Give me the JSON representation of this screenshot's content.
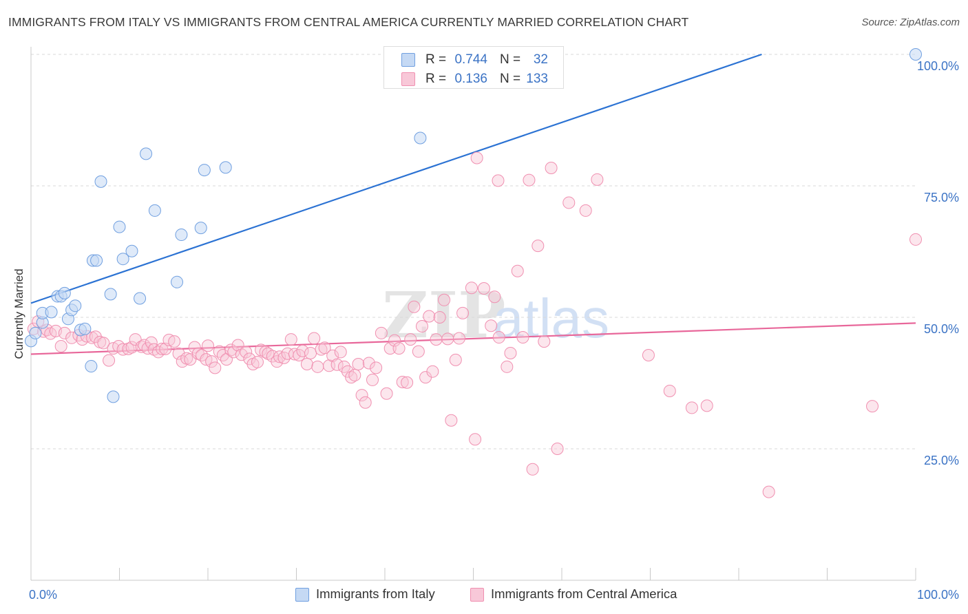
{
  "title": "IMMIGRANTS FROM ITALY VS IMMIGRANTS FROM CENTRAL AMERICA CURRENTLY MARRIED CORRELATION CHART",
  "source": "Source: ZipAtlas.com",
  "watermark": "ZIPatlas",
  "colors": {
    "blue": "#6f9fe0",
    "blue_fill": "#c5d9f4",
    "blue_line": "#2b72d3",
    "pink": "#f08fb0",
    "pink_fill": "#f8c8d8",
    "pink_line": "#e8679a",
    "value_blue": "#3b73c5",
    "grid": "#d9d9d9"
  },
  "legend_stats": [
    {
      "series": "Immigrants from Italy",
      "r_label": "R =",
      "r_value": "0.744",
      "n_label": "N =",
      "n_value": "32"
    },
    {
      "series": "Immigrants from Central America",
      "r_label": "R =",
      "r_value": "0.136",
      "n_label": "N =",
      "n_value": "133"
    }
  ],
  "chart_data": {
    "type": "scatter",
    "title": "IMMIGRANTS FROM ITALY VS IMMIGRANTS FROM CENTRAL AMERICA CURRENTLY MARRIED CORRELATION CHART",
    "xlabel": "",
    "ylabel": "Currently Married",
    "xlim": [
      0,
      100
    ],
    "ylim": [
      0,
      100
    ],
    "x_tick_labels": [
      "0.0%",
      "100.0%"
    ],
    "y_tick_labels": [
      "25.0%",
      "50.0%",
      "75.0%",
      "100.0%"
    ],
    "y_ticks": [
      25,
      50,
      75,
      100
    ],
    "grid": true,
    "legend_position": "bottom",
    "series": [
      {
        "name": "Immigrants from Italy",
        "color": "#6f9fe0",
        "trend": {
          "x": [
            0,
            82.6
          ],
          "y": [
            52.7,
            100
          ]
        },
        "points": [
          [
            0.0,
            45.5
          ],
          [
            1.3,
            49.0
          ],
          [
            1.3,
            50.8
          ],
          [
            2.3,
            51.0
          ],
          [
            3.0,
            54.0
          ],
          [
            3.4,
            54.0
          ],
          [
            3.8,
            54.6
          ],
          [
            4.2,
            49.7
          ],
          [
            4.6,
            51.4
          ],
          [
            5.0,
            52.2
          ],
          [
            5.6,
            47.6
          ],
          [
            6.1,
            47.8
          ],
          [
            6.8,
            40.7
          ],
          [
            7.0,
            60.8
          ],
          [
            7.4,
            60.8
          ],
          [
            7.9,
            75.8
          ],
          [
            9.0,
            54.4
          ],
          [
            9.3,
            34.9
          ],
          [
            10.0,
            67.2
          ],
          [
            10.4,
            61.1
          ],
          [
            11.4,
            62.6
          ],
          [
            12.3,
            53.6
          ],
          [
            13.0,
            81.1
          ],
          [
            14.0,
            70.3
          ],
          [
            16.5,
            56.7
          ],
          [
            17.0,
            65.7
          ],
          [
            19.2,
            67.0
          ],
          [
            19.6,
            78.0
          ],
          [
            22.0,
            78.5
          ],
          [
            44.0,
            84.1
          ],
          [
            100.0,
            100.0
          ],
          [
            0.5,
            47.0
          ]
        ]
      },
      {
        "name": "Immigrants from Central America",
        "color": "#f08fb0",
        "trend": {
          "x": [
            0,
            100
          ],
          "y": [
            43.0,
            48.9
          ]
        },
        "points": [
          [
            0.3,
            47.8
          ],
          [
            0.8,
            49.2
          ],
          [
            1.4,
            47.3
          ],
          [
            1.8,
            47.6
          ],
          [
            2.2,
            46.9
          ],
          [
            2.8,
            47.4
          ],
          [
            3.4,
            44.5
          ],
          [
            3.8,
            47.0
          ],
          [
            4.6,
            46.1
          ],
          [
            5.4,
            46.6
          ],
          [
            5.8,
            45.8
          ],
          [
            6.3,
            46.4
          ],
          [
            6.9,
            46.1
          ],
          [
            7.3,
            46.3
          ],
          [
            7.8,
            45.3
          ],
          [
            8.2,
            45.1
          ],
          [
            8.8,
            41.8
          ],
          [
            9.3,
            44.1
          ],
          [
            9.9,
            44.5
          ],
          [
            10.4,
            43.9
          ],
          [
            11.0,
            44.0
          ],
          [
            11.4,
            44.3
          ],
          [
            11.8,
            45.8
          ],
          [
            12.5,
            44.4
          ],
          [
            12.8,
            44.7
          ],
          [
            13.2,
            44.1
          ],
          [
            13.6,
            45.2
          ],
          [
            13.9,
            43.9
          ],
          [
            14.4,
            43.4
          ],
          [
            14.8,
            44.0
          ],
          [
            15.2,
            44.0
          ],
          [
            15.6,
            45.7
          ],
          [
            16.2,
            45.4
          ],
          [
            16.7,
            43.1
          ],
          [
            17.1,
            41.6
          ],
          [
            17.6,
            42.2
          ],
          [
            18.0,
            42.0
          ],
          [
            18.5,
            44.3
          ],
          [
            18.9,
            43.1
          ],
          [
            19.3,
            42.8
          ],
          [
            19.8,
            42.0
          ],
          [
            20.0,
            44.6
          ],
          [
            20.4,
            41.6
          ],
          [
            20.8,
            40.4
          ],
          [
            21.3,
            43.5
          ],
          [
            21.7,
            42.8
          ],
          [
            22.1,
            42.0
          ],
          [
            22.6,
            43.8
          ],
          [
            22.9,
            43.4
          ],
          [
            23.4,
            44.7
          ],
          [
            23.8,
            42.9
          ],
          [
            24.3,
            43.4
          ],
          [
            24.7,
            42.1
          ],
          [
            25.1,
            41.1
          ],
          [
            25.6,
            41.5
          ],
          [
            26.0,
            43.8
          ],
          [
            26.5,
            43.4
          ],
          [
            26.8,
            43.1
          ],
          [
            27.3,
            42.6
          ],
          [
            27.8,
            41.6
          ],
          [
            28.1,
            42.5
          ],
          [
            28.6,
            42.3
          ],
          [
            29.0,
            43.1
          ],
          [
            29.4,
            45.8
          ],
          [
            29.8,
            43.0
          ],
          [
            30.3,
            42.8
          ],
          [
            30.7,
            43.6
          ],
          [
            31.2,
            41.1
          ],
          [
            31.6,
            43.2
          ],
          [
            32.0,
            46.0
          ],
          [
            32.4,
            40.6
          ],
          [
            32.8,
            43.9
          ],
          [
            33.2,
            44.2
          ],
          [
            33.7,
            40.8
          ],
          [
            34.1,
            42.7
          ],
          [
            34.6,
            41.0
          ],
          [
            35.0,
            43.4
          ],
          [
            35.4,
            40.6
          ],
          [
            35.8,
            39.7
          ],
          [
            36.2,
            38.6
          ],
          [
            36.6,
            39.0
          ],
          [
            37.0,
            41.1
          ],
          [
            37.4,
            35.2
          ],
          [
            37.8,
            33.8
          ],
          [
            38.2,
            41.3
          ],
          [
            38.6,
            38.1
          ],
          [
            39.0,
            40.4
          ],
          [
            39.6,
            47.0
          ],
          [
            40.2,
            35.5
          ],
          [
            40.6,
            44.1
          ],
          [
            41.1,
            45.6
          ],
          [
            41.6,
            44.1
          ],
          [
            42.0,
            37.7
          ],
          [
            42.5,
            37.6
          ],
          [
            42.9,
            45.8
          ],
          [
            43.3,
            52.0
          ],
          [
            43.8,
            43.5
          ],
          [
            44.2,
            48.3
          ],
          [
            44.6,
            38.6
          ],
          [
            45.0,
            50.2
          ],
          [
            45.4,
            39.7
          ],
          [
            45.8,
            45.8
          ],
          [
            46.2,
            50.0
          ],
          [
            46.7,
            53.3
          ],
          [
            47.1,
            45.9
          ],
          [
            47.5,
            30.4
          ],
          [
            48.0,
            41.9
          ],
          [
            48.4,
            46.0
          ],
          [
            48.8,
            50.8
          ],
          [
            49.8,
            55.6
          ],
          [
            50.2,
            26.8
          ],
          [
            50.4,
            80.3
          ],
          [
            51.2,
            55.5
          ],
          [
            52.0,
            48.4
          ],
          [
            52.4,
            53.9
          ],
          [
            52.8,
            76.0
          ],
          [
            52.9,
            46.2
          ],
          [
            53.8,
            40.6
          ],
          [
            54.2,
            43.2
          ],
          [
            55.0,
            58.8
          ],
          [
            55.6,
            46.2
          ],
          [
            56.3,
            76.1
          ],
          [
            56.7,
            21.1
          ],
          [
            57.3,
            63.6
          ],
          [
            58.0,
            45.4
          ],
          [
            58.8,
            78.4
          ],
          [
            59.5,
            25.0
          ],
          [
            60.8,
            71.8
          ],
          [
            62.7,
            70.3
          ],
          [
            64.0,
            76.2
          ],
          [
            69.8,
            42.8
          ],
          [
            72.2,
            36.0
          ],
          [
            74.7,
            32.8
          ],
          [
            76.4,
            33.2
          ],
          [
            83.4,
            16.8
          ],
          [
            95.1,
            33.1
          ],
          [
            100.0,
            64.8
          ]
        ]
      }
    ]
  }
}
